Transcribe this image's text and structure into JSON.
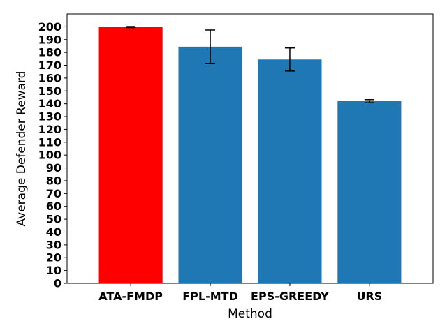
{
  "chart_data": {
    "type": "bar",
    "title": "",
    "xlabel": "Method",
    "ylabel": "Average Defender Reward",
    "categories": [
      "ATA-FMDP",
      "FPL-MTD",
      "EPS-GREEDY",
      "URS"
    ],
    "values": [
      199.8,
      184.5,
      174.5,
      142.0
    ],
    "errors": [
      0.4,
      13.0,
      9.0,
      1.2
    ],
    "bar_colors": [
      "#ff0000",
      "#1f77b4",
      "#1f77b4",
      "#1f77b4"
    ],
    "ylim": [
      0,
      210
    ],
    "yticks": [
      "0",
      "10",
      "20",
      "30",
      "40",
      "50",
      "60",
      "70",
      "80",
      "90",
      "100",
      "110",
      "120",
      "130",
      "140",
      "150",
      "160",
      "170",
      "180",
      "190",
      "200"
    ],
    "grid": false
  }
}
